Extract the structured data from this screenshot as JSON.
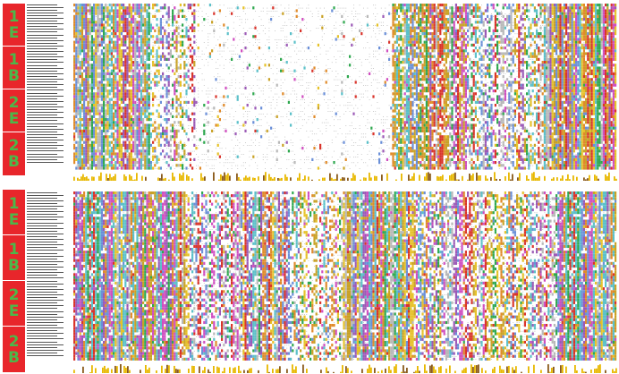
{
  "groups": {
    "top": [
      {
        "id": "1E",
        "chars": [
          "1",
          "E"
        ]
      },
      {
        "id": "1B",
        "chars": [
          "1",
          "B"
        ]
      },
      {
        "id": "2E",
        "chars": [
          "2",
          "E"
        ]
      },
      {
        "id": "2B",
        "chars": [
          "2",
          "B"
        ]
      }
    ],
    "bottom": [
      {
        "id": "1E",
        "chars": [
          "1",
          "E"
        ]
      },
      {
        "id": "1B",
        "chars": [
          "1",
          "B"
        ]
      },
      {
        "id": "2E",
        "chars": [
          "2",
          "E"
        ]
      },
      {
        "id": "2B",
        "chars": [
          "2",
          "B"
        ]
      }
    ]
  },
  "colors": {
    "label_bg": "#e8262b",
    "label_text": "#4cb84a",
    "blue": "#6a8fd8",
    "cyan": "#5bc0c9",
    "green": "#2fa84f",
    "purple": "#9b59b6",
    "magenta": "#d04fc0",
    "red": "#d9342b",
    "orange": "#e08a2a",
    "yellow": "#e6c229",
    "gold": "#c9a227",
    "grey": "#b8b8b8",
    "conservation": "#e8b800"
  }
}
